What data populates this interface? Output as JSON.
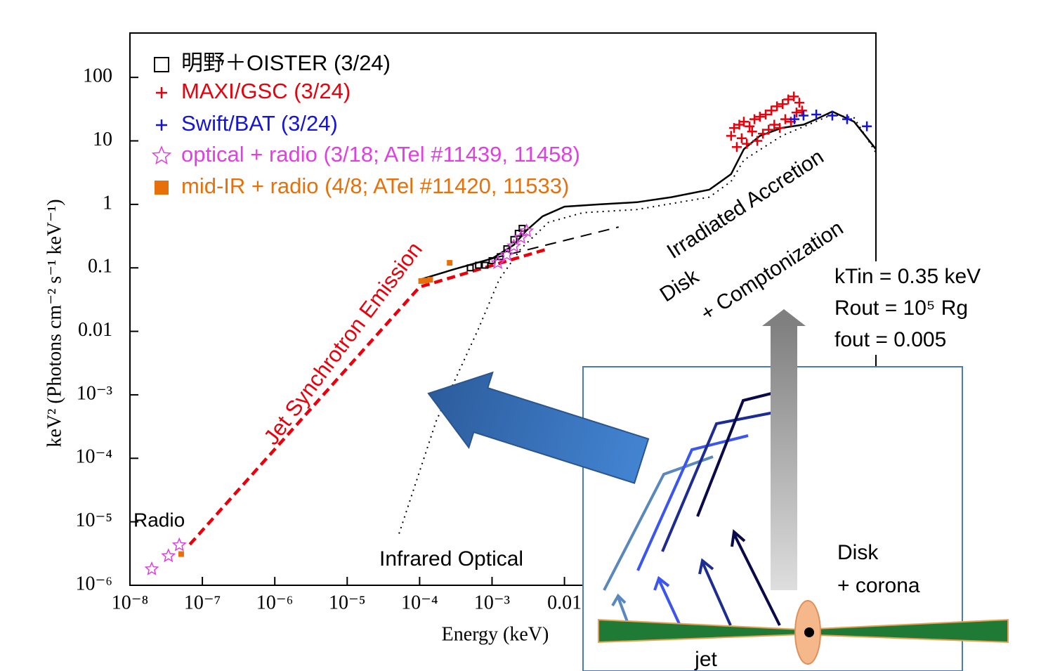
{
  "chart_data": {
    "type": "scatter",
    "xlabel": "Energy (keV)",
    "ylabel": "keV² (Photons cm⁻² s⁻¹ keV⁻¹)",
    "log_x": true,
    "log_y": true,
    "xlim": [
      1e-08,
      200
    ],
    "ylim": [
      1e-06,
      500
    ],
    "xticks": [
      {
        "value": 1e-08,
        "label": "10⁻⁸"
      },
      {
        "value": 1e-07,
        "label": "10⁻⁷"
      },
      {
        "value": 1e-06,
        "label": "10⁻⁶"
      },
      {
        "value": 1e-05,
        "label": "10⁻⁵"
      },
      {
        "value": 0.0001,
        "label": "10⁻⁴"
      },
      {
        "value": 0.001,
        "label": "10⁻³"
      },
      0.01
    ],
    "yticks": [
      {
        "value": 1e-06,
        "label": "10⁻⁶"
      },
      {
        "value": 1e-05,
        "label": "10⁻⁵"
      },
      {
        "value": 0.0001,
        "label": "10⁻⁴"
      },
      {
        "value": 0.001,
        "label": "10⁻³"
      },
      0.01,
      0.1,
      1,
      10,
      100
    ],
    "series": [
      {
        "name": "明野＋OISTER (3/24)",
        "color": "#000000",
        "marker": "square-open",
        "x": [
          0.0005,
          0.00065,
          0.0008,
          0.001,
          0.0013,
          0.0016,
          0.002,
          0.0023,
          0.0026
        ],
        "values": [
          0.1,
          0.11,
          0.11,
          0.13,
          0.15,
          0.2,
          0.28,
          0.35,
          0.42
        ]
      },
      {
        "name": "MAXI/GSC (3/24)",
        "color": "#e8000b",
        "marker": "plus",
        "x": [
          2.0,
          2.2,
          2.4,
          2.6,
          2.8,
          3.0,
          3.3,
          3.6,
          3.9,
          4.2,
          4.6,
          5.0,
          5.5,
          6.0,
          6.6,
          7.2,
          7.9,
          8.6,
          9.4,
          10.3,
          11.2,
          12.3,
          13.4,
          14.7,
          16.0,
          17.5,
          19.1
        ],
        "values": [
          12,
          16,
          8,
          18,
          11,
          20,
          9,
          17,
          14,
          22,
          10,
          24,
          13,
          26,
          15,
          30,
          18,
          35,
          16,
          38,
          22,
          45,
          20,
          50,
          28,
          40,
          30
        ]
      },
      {
        "name": "Swift/BAT (3/24)",
        "color": "#1515d8",
        "marker": "plus",
        "x": [
          15,
          20,
          30,
          50,
          80,
          150
        ],
        "values": [
          22,
          25,
          26,
          25,
          22,
          17
        ]
      },
      {
        "name": "optical + radio (3/18; ATel #11439, 11458)",
        "color": "#e040e0",
        "marker": "star-open",
        "x": [
          2e-08,
          3.4e-08,
          4.8e-08,
          0.0012,
          0.0016,
          0.002,
          0.0025,
          0.003
        ],
        "values": [
          1.8e-06,
          2.9e-06,
          4.3e-06,
          0.12,
          0.16,
          0.22,
          0.3,
          0.38
        ]
      },
      {
        "name": "mid-IR + radio (4/8; ATel #11420, 11533)",
        "color": "#e8700a",
        "marker": "square",
        "x": [
          5.1e-08,
          0.000105,
          0.00012,
          0.00014,
          0.00026
        ],
        "values": [
          3.1e-06,
          0.062,
          0.063,
          0.065,
          0.12
        ]
      }
    ],
    "lines": [
      {
        "style": "solid",
        "color": "#000000",
        "x": [
          0.0001,
          0.0003,
          0.001,
          0.002,
          0.003,
          0.005,
          0.01,
          0.03,
          0.1,
          0.3,
          1,
          2,
          3,
          5,
          10,
          20,
          30,
          50,
          100,
          200
        ],
        "values": [
          0.065,
          0.095,
          0.14,
          0.23,
          0.39,
          0.65,
          0.92,
          1.0,
          1.08,
          1.3,
          1.7,
          3.0,
          7.4,
          12,
          16,
          18,
          22,
          29,
          20,
          7.4
        ]
      },
      {
        "style": "dotted",
        "color": "#000000",
        "x": [
          5.2e-05,
          0.00017,
          0.00065,
          0.00125,
          0.0025,
          0.006,
          0.018,
          0.1,
          1,
          2,
          3,
          10,
          50,
          100,
          200
        ],
        "values": [
          6.5e-06,
          0.00039,
          0.011,
          0.065,
          0.2,
          0.52,
          0.74,
          0.83,
          1.3,
          2.3,
          5,
          12,
          26,
          23,
          6.5
        ]
      },
      {
        "style": "dashed",
        "color": "#000000",
        "x": [
          0.001,
          0.056
        ],
        "values": [
          0.14,
          0.44
        ]
      },
      {
        "style": "dashed-thick",
        "color": "#e8000b",
        "x": [
          6.7e-08,
          0.0001,
          0.006
        ],
        "values": [
          4.4e-06,
          0.05,
          0.2
        ]
      }
    ],
    "annotations": [
      {
        "text": "Jet Synchrotron Emission",
        "color": "#e8000b"
      },
      {
        "text": "Irradiated Accretion",
        "color": "#000000"
      },
      {
        "text": "Disk",
        "color": "#000000"
      },
      {
        "text": "+ Comptonization",
        "color": "#000000"
      },
      {
        "text": "Radio",
        "color": "#000000"
      },
      {
        "text": "Infrared Optical",
        "color": "#000000"
      }
    ]
  },
  "fit_parameters": [
    "kTin = 0.35 keV",
    "Rout = 10⁵ Rg",
    "fout = 0.005"
  ],
  "diagram": {
    "labels": [
      "Disk",
      "+ corona",
      "jet"
    ]
  }
}
